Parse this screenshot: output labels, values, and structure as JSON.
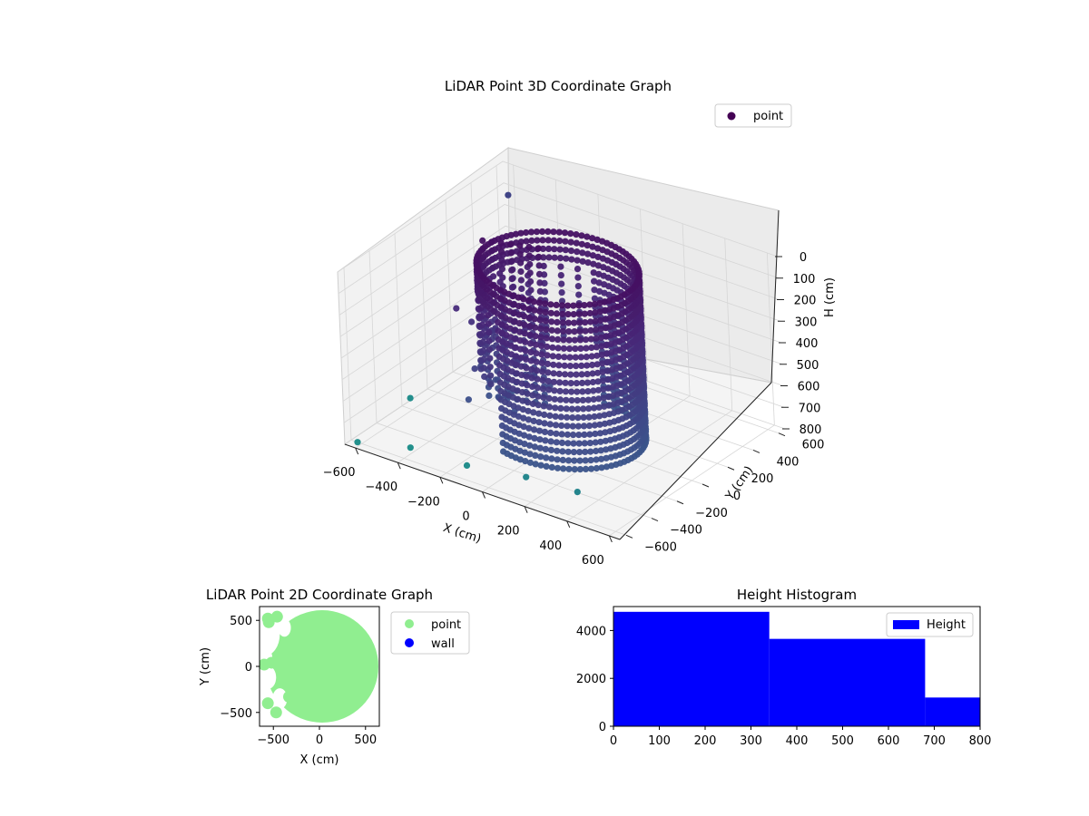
{
  "chart_data": [
    {
      "type": "scatter",
      "projection": "3d",
      "title": "LiDAR Point 3D Coordinate Graph",
      "xlabel": "X (cm)",
      "ylabel": "Y (cm)",
      "zlabel": "H (cm)",
      "xlim": [
        -650,
        650
      ],
      "ylim": [
        -650,
        650
      ],
      "zlim": [
        800,
        0
      ],
      "z_inverted": true,
      "xticks": [
        "−600",
        "−400",
        "−200",
        "0",
        "200",
        "400",
        "600"
      ],
      "yticks": [
        "−600",
        "−400",
        "−200",
        "0",
        "200",
        "400",
        "600"
      ],
      "zticks": [
        "0",
        "100",
        "200",
        "300",
        "400",
        "500",
        "600",
        "700",
        "800"
      ],
      "xtick_values": [
        -600,
        -400,
        -200,
        0,
        200,
        400,
        600
      ],
      "ytick_values": [
        -600,
        -400,
        -200,
        0,
        200,
        400,
        600
      ],
      "ztick_values": [
        0,
        100,
        200,
        300,
        400,
        500,
        600,
        700,
        800
      ],
      "legend": {
        "placement": "top-right",
        "entries": [
          {
            "label": "point",
            "color": "#440154"
          }
        ]
      },
      "colormap": "viridis",
      "grid": true,
      "series": [
        {
          "name": "point",
          "shape": "cylindrical-wall",
          "radius_cm": 330,
          "height_range_cm": [
            0,
            800
          ],
          "outliers": [
            {
              "x": -620,
              "y": -600,
              "h": 800
            },
            {
              "x": -430,
              "y": -500,
              "h": 800
            },
            {
              "x": -150,
              "y": -520,
              "h": 780
            },
            {
              "x": 150,
              "y": -550,
              "h": 720
            },
            {
              "x": 400,
              "y": -560,
              "h": 700
            },
            {
              "x": -640,
              "y": -150,
              "h": 780
            },
            {
              "x": -600,
              "y": 600,
              "h": 120
            }
          ]
        }
      ]
    },
    {
      "type": "scatter",
      "title": "LiDAR Point 2D Coordinate Graph",
      "xlabel": "X (cm)",
      "ylabel": "Y (cm)",
      "xlim": [
        -650,
        650
      ],
      "ylim": [
        -650,
        650
      ],
      "xticks": [
        "−500",
        "0",
        "500"
      ],
      "yticks": [
        "−500",
        "0",
        "500"
      ],
      "xtick_values": [
        -500,
        0,
        500
      ],
      "ytick_values": [
        -500,
        0,
        500
      ],
      "legend": {
        "placement": "right",
        "entries": [
          {
            "label": "point",
            "color": "#90ee90"
          },
          {
            "label": "wall",
            "color": "#0000ff"
          }
        ]
      },
      "series": [
        {
          "name": "point",
          "color": "#90ee90",
          "disk_center": [
            30,
            0
          ],
          "disk_radius": 610
        },
        {
          "name": "wall",
          "color": "#0000ff",
          "points": []
        }
      ]
    },
    {
      "type": "bar",
      "subtype": "histogram",
      "title": "Height Histogram",
      "xlabel": "",
      "ylabel": "",
      "xlim": [
        0,
        800
      ],
      "ylim": [
        0,
        5000
      ],
      "xticks": [
        "0",
        "100",
        "200",
        "300",
        "400",
        "500",
        "600",
        "700",
        "800"
      ],
      "yticks": [
        "0",
        "2000",
        "4000"
      ],
      "xtick_values": [
        0,
        100,
        200,
        300,
        400,
        500,
        600,
        700,
        800
      ],
      "ytick_values": [
        0,
        2000,
        4000
      ],
      "bin_edges": [
        0,
        340,
        680,
        800
      ],
      "values": [
        4780,
        3650,
        1200
      ],
      "color": "#0000ff",
      "legend": {
        "placement": "top-right",
        "entries": [
          {
            "label": "Height",
            "color": "#0000ff"
          }
        ]
      }
    }
  ]
}
